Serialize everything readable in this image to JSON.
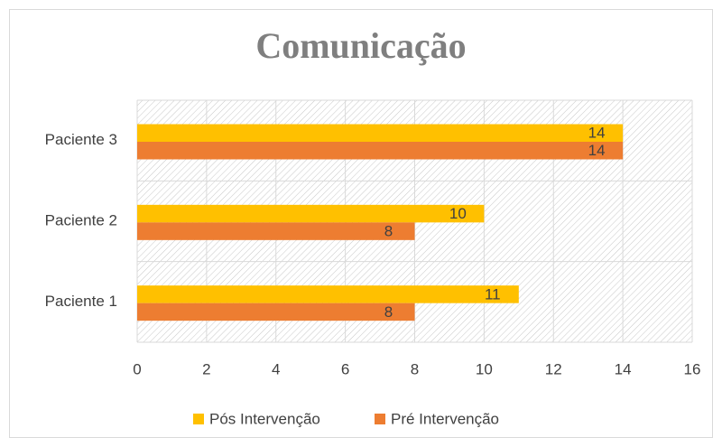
{
  "chart_data": {
    "type": "bar",
    "orientation": "horizontal",
    "title": "Comunicação",
    "categories": [
      "Paciente 1",
      "Paciente 2",
      "Paciente 3"
    ],
    "series": [
      {
        "name": "Pós Intervenção",
        "color": "#FFC000",
        "values": [
          11,
          10,
          14
        ]
      },
      {
        "name": "Pré Intervenção",
        "color": "#ED7D31",
        "values": [
          8,
          8,
          14
        ]
      }
    ],
    "xlim": [
      0,
      16
    ],
    "xticks": [
      0,
      2,
      4,
      6,
      8,
      10,
      12,
      14,
      16
    ],
    "grid": true,
    "legend": "bottom"
  }
}
